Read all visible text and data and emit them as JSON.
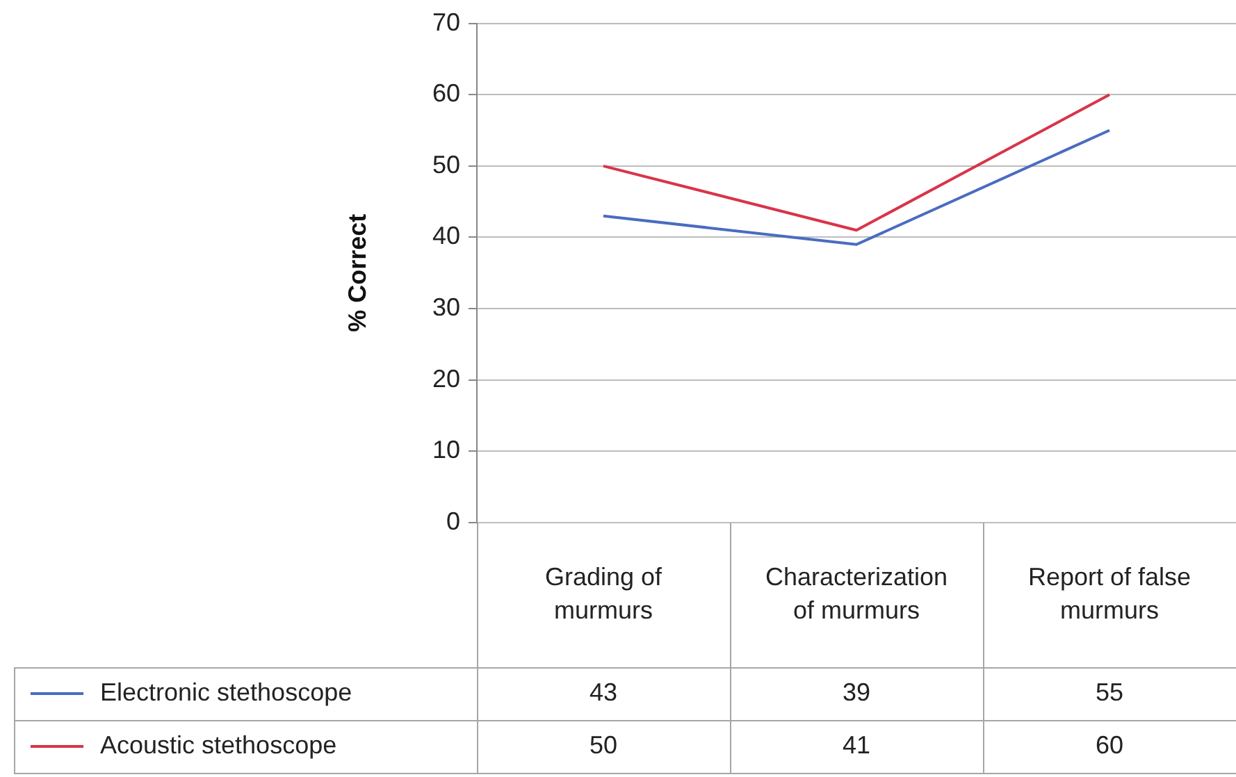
{
  "chart_data": {
    "type": "line",
    "ylabel": "% Correct",
    "categories": [
      "Grading of murmurs",
      "Characterization of murmurs",
      "Report of false murmurs"
    ],
    "series": [
      {
        "name": "Electronic stethoscope",
        "color": "#4a6cc0",
        "values": [
          43,
          39,
          55
        ]
      },
      {
        "name": "Acoustic stethoscope",
        "color": "#d9344a",
        "values": [
          50,
          41,
          60
        ]
      }
    ],
    "ylim": [
      0,
      70
    ],
    "yticks": [
      0,
      10,
      20,
      30,
      40,
      50,
      60,
      70
    ],
    "grid": "y",
    "legend": "bottom left",
    "marker": "none",
    "data_labels": true
  }
}
